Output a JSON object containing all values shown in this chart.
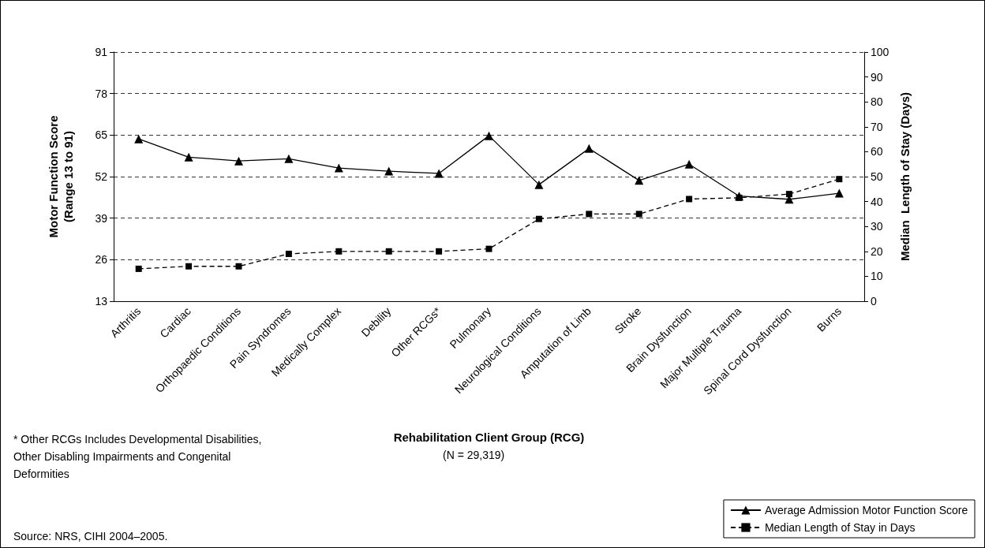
{
  "chart_data": {
    "type": "line",
    "categories": [
      "Arthritis",
      "Cardiac",
      "Orthopaedic Conditions",
      "Pain Syndromes",
      "Medically Complex",
      "Debility",
      "Other RCGs*",
      "Pulmonary",
      "Neurological Conditions",
      "Amputation of Limb",
      "Stroke",
      "Brain Dysfunction",
      "Major Multiple Trauma",
      "Spinal Cord Dysfunction",
      "Burns"
    ],
    "series": [
      {
        "name": "Average Admission Motor Function Score",
        "color": "#000000",
        "marker": "triangle",
        "line_style": "solid",
        "values": [
          63.8,
          58.1,
          56.9,
          57.6,
          54.7,
          53.7,
          53.0,
          64.8,
          49.5,
          60.8,
          50.8,
          55.9,
          45.9,
          44.9,
          46.8
        ]
      },
      {
        "name": "Median Length of Stay in Days",
        "color": "#000000",
        "marker": "square",
        "line_style": "dashed",
        "axis": "y2",
        "values": [
          13,
          14,
          14,
          19,
          20,
          20,
          20,
          21,
          33,
          35,
          35,
          41,
          41.5,
          43,
          49
        ]
      }
    ],
    "xlabel": "Rehabilitation Client Group (RCG)",
    "ylabel": "Motor Function Score\n(Range 13 to 91)",
    "y2label": "Median  Length of Stay (Days)",
    "ylim": [
      13,
      91
    ],
    "yticks": [
      13,
      26,
      39,
      52,
      65,
      78,
      91
    ],
    "y2lim": [
      0,
      100
    ],
    "y2ticks": [
      0,
      10,
      20,
      30,
      40,
      50,
      60,
      70,
      80,
      90,
      100
    ],
    "grid": "y",
    "legend": "bottom right",
    "annotations": [
      "* Other RCGs Includes Developmental Disabilities, Other Disabling Impairments and Congenital Deformities",
      "(N = 29,319)",
      "Source: NRS, CIHI 2004–2005."
    ]
  }
}
